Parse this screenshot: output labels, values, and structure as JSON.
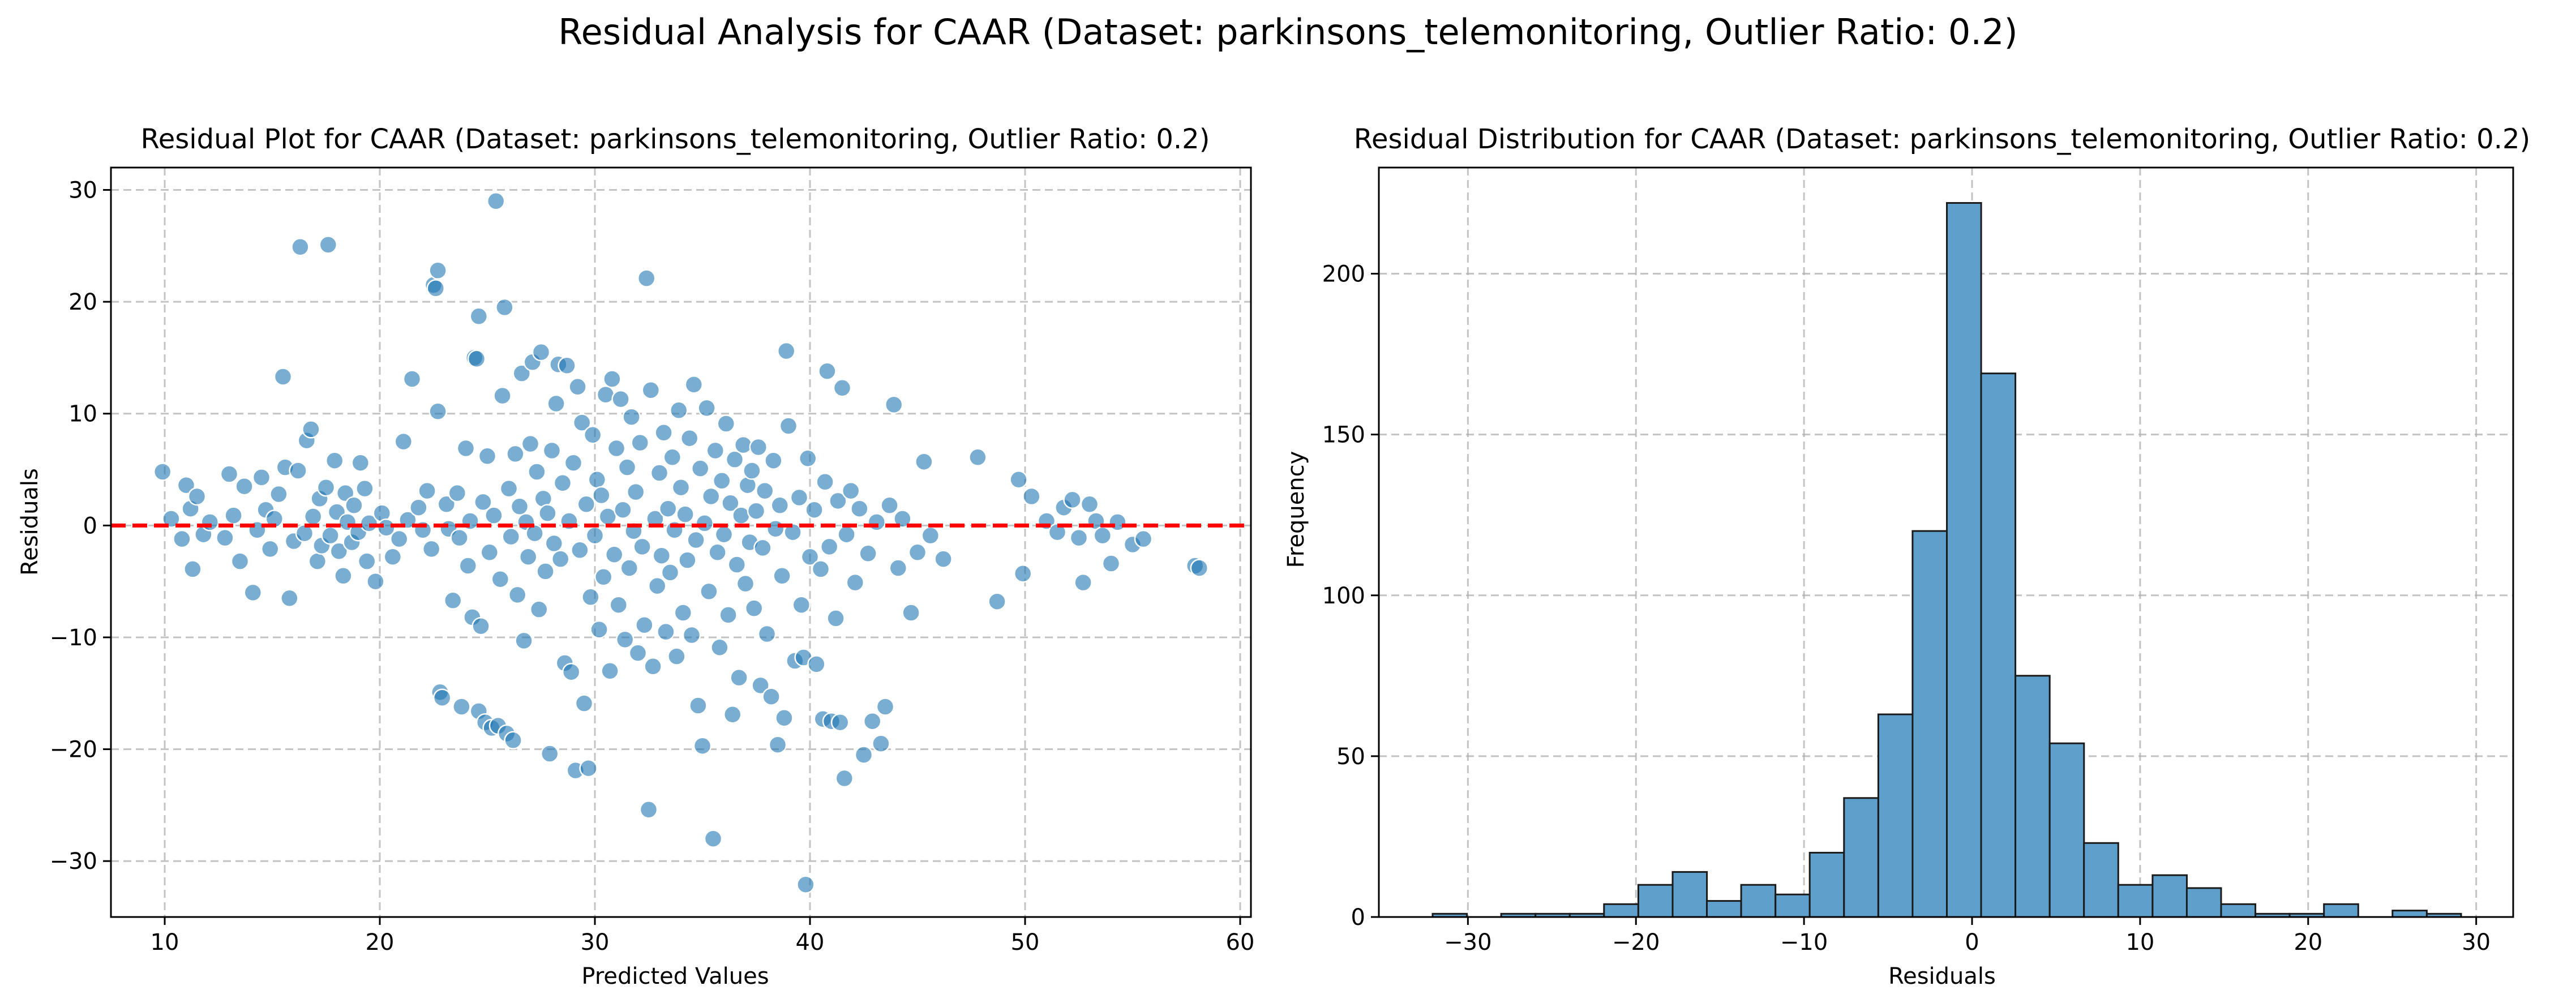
{
  "suptitle": "Residual Analysis for CAAR (Dataset: parkinsons_telemonitoring, Outlier Ratio: 0.2)",
  "colors": {
    "points": "#1f77b4",
    "zero_line": "#ff0000",
    "bars": "#5f9fcc",
    "bar_edge": "#1a1a1a"
  },
  "chart_data": [
    {
      "type": "scatter",
      "title": "Residual Plot for CAAR (Dataset: parkinsons_telemonitoring, Outlier Ratio: 0.2)",
      "xlabel": "Predicted Values",
      "ylabel": "Residuals",
      "xlim": [
        7.5,
        60.5
      ],
      "ylim": [
        -35,
        32
      ],
      "xticks": [
        10,
        20,
        30,
        40,
        50,
        60
      ],
      "yticks": [
        -30,
        -20,
        -10,
        0,
        10,
        20,
        30
      ],
      "tick_labels_x": [
        "10",
        "20",
        "30",
        "40",
        "50",
        "60"
      ],
      "tick_labels_y": [
        "−30",
        "−20",
        "−10",
        "0",
        "10",
        "20",
        "30"
      ],
      "grid": true,
      "reference_line": {
        "y": 0,
        "style": "dashed",
        "color": "red"
      },
      "points": [
        [
          9.9,
          4.8
        ],
        [
          10.3,
          0.6
        ],
        [
          10.8,
          -1.2
        ],
        [
          11.0,
          3.6
        ],
        [
          11.2,
          1.5
        ],
        [
          11.3,
          -3.9
        ],
        [
          11.5,
          2.6
        ],
        [
          11.8,
          -0.8
        ],
        [
          12.1,
          0.3
        ],
        [
          12.8,
          -1.1
        ],
        [
          13.0,
          4.6
        ],
        [
          13.2,
          0.9
        ],
        [
          13.5,
          -3.2
        ],
        [
          13.7,
          3.5
        ],
        [
          14.1,
          -6.0
        ],
        [
          14.3,
          -0.4
        ],
        [
          14.5,
          4.3
        ],
        [
          14.7,
          1.4
        ],
        [
          14.9,
          -2.1
        ],
        [
          15.1,
          0.6
        ],
        [
          15.3,
          2.8
        ],
        [
          15.5,
          13.3
        ],
        [
          15.6,
          5.2
        ],
        [
          15.8,
          -6.5
        ],
        [
          16.0,
          -1.4
        ],
        [
          16.2,
          4.9
        ],
        [
          16.3,
          24.9
        ],
        [
          16.5,
          -0.7
        ],
        [
          16.6,
          7.6
        ],
        [
          16.8,
          8.6
        ],
        [
          16.9,
          0.8
        ],
        [
          17.1,
          -3.2
        ],
        [
          17.2,
          2.4
        ],
        [
          17.3,
          -1.8
        ],
        [
          17.5,
          3.4
        ],
        [
          17.6,
          25.1
        ],
        [
          17.7,
          -0.9
        ],
        [
          17.9,
          5.8
        ],
        [
          18.0,
          1.2
        ],
        [
          18.1,
          -2.3
        ],
        [
          18.3,
          -4.5
        ],
        [
          18.4,
          2.9
        ],
        [
          18.5,
          0.3
        ],
        [
          18.7,
          -1.5
        ],
        [
          18.8,
          1.8
        ],
        [
          19.0,
          -0.6
        ],
        [
          19.1,
          5.6
        ],
        [
          19.3,
          3.3
        ],
        [
          19.4,
          -3.2
        ],
        [
          19.5,
          0.2
        ],
        [
          19.8,
          -5.0
        ],
        [
          20.1,
          1.1
        ],
        [
          20.3,
          -0.2
        ],
        [
          20.6,
          -2.8
        ],
        [
          20.9,
          -1.2
        ],
        [
          21.1,
          7.5
        ],
        [
          21.3,
          0.5
        ],
        [
          21.5,
          13.1
        ],
        [
          21.8,
          1.6
        ],
        [
          22.0,
          -0.4
        ],
        [
          22.2,
          3.1
        ],
        [
          22.4,
          -2.1
        ],
        [
          22.5,
          21.5
        ],
        [
          22.6,
          21.2
        ],
        [
          22.7,
          22.8
        ],
        [
          22.7,
          10.2
        ],
        [
          22.8,
          -14.9
        ],
        [
          22.9,
          -15.4
        ],
        [
          23.1,
          1.9
        ],
        [
          23.2,
          -0.3
        ],
        [
          23.4,
          -6.7
        ],
        [
          23.6,
          2.9
        ],
        [
          23.7,
          -1.1
        ],
        [
          23.8,
          -16.2
        ],
        [
          24.0,
          6.9
        ],
        [
          24.1,
          -3.6
        ],
        [
          24.2,
          0.4
        ],
        [
          24.3,
          -8.2
        ],
        [
          24.4,
          15.0
        ],
        [
          24.5,
          14.9
        ],
        [
          24.6,
          18.7
        ],
        [
          24.6,
          -16.6
        ],
        [
          24.7,
          -9.0
        ],
        [
          24.8,
          2.1
        ],
        [
          24.9,
          -17.6
        ],
        [
          25.0,
          6.2
        ],
        [
          25.1,
          -2.4
        ],
        [
          25.2,
          -18.1
        ],
        [
          25.3,
          0.9
        ],
        [
          25.4,
          29.0
        ],
        [
          25.5,
          -17.9
        ],
        [
          25.6,
          -4.8
        ],
        [
          25.7,
          11.6
        ],
        [
          25.8,
          19.5
        ],
        [
          25.9,
          -18.6
        ],
        [
          26.0,
          3.3
        ],
        [
          26.1,
          -1.0
        ],
        [
          26.2,
          -19.2
        ],
        [
          26.3,
          6.4
        ],
        [
          26.4,
          -6.2
        ],
        [
          26.5,
          1.7
        ],
        [
          26.6,
          13.6
        ],
        [
          26.7,
          -10.3
        ],
        [
          26.8,
          0.3
        ],
        [
          26.9,
          -2.8
        ],
        [
          27.0,
          7.3
        ],
        [
          27.1,
          14.6
        ],
        [
          27.2,
          -0.7
        ],
        [
          27.3,
          4.8
        ],
        [
          27.4,
          -7.5
        ],
        [
          27.5,
          15.5
        ],
        [
          27.6,
          2.4
        ],
        [
          27.7,
          -4.1
        ],
        [
          27.8,
          1.1
        ],
        [
          27.9,
          -20.4
        ],
        [
          28.0,
          6.7
        ],
        [
          28.1,
          -1.6
        ],
        [
          28.2,
          10.9
        ],
        [
          28.3,
          14.4
        ],
        [
          28.4,
          -3.0
        ],
        [
          28.5,
          3.8
        ],
        [
          28.6,
          -12.3
        ],
        [
          28.7,
          14.3
        ],
        [
          28.8,
          0.4
        ],
        [
          28.9,
          -13.1
        ],
        [
          29.0,
          5.6
        ],
        [
          29.1,
          -21.9
        ],
        [
          29.2,
          12.4
        ],
        [
          29.3,
          -2.2
        ],
        [
          29.4,
          9.2
        ],
        [
          29.5,
          -15.9
        ],
        [
          29.6,
          1.9
        ],
        [
          29.7,
          -21.7
        ],
        [
          29.8,
          -6.4
        ],
        [
          29.9,
          8.1
        ],
        [
          30.0,
          -0.9
        ],
        [
          30.1,
          4.1
        ],
        [
          30.2,
          -9.3
        ],
        [
          30.3,
          2.7
        ],
        [
          30.4,
          -4.6
        ],
        [
          30.5,
          11.7
        ],
        [
          30.6,
          0.8
        ],
        [
          30.7,
          -13.0
        ],
        [
          30.8,
          13.1
        ],
        [
          30.9,
          -2.6
        ],
        [
          31.0,
          6.9
        ],
        [
          31.1,
          -7.1
        ],
        [
          31.2,
          11.3
        ],
        [
          31.3,
          1.4
        ],
        [
          31.4,
          -10.2
        ],
        [
          31.5,
          5.2
        ],
        [
          31.6,
          -3.8
        ],
        [
          31.7,
          9.7
        ],
        [
          31.8,
          -0.5
        ],
        [
          31.9,
          3.0
        ],
        [
          32.0,
          -11.4
        ],
        [
          32.1,
          7.4
        ],
        [
          32.2,
          -1.9
        ],
        [
          32.3,
          -8.9
        ],
        [
          32.4,
          22.1
        ],
        [
          32.5,
          -25.4
        ],
        [
          32.6,
          12.1
        ],
        [
          32.7,
          -12.6
        ],
        [
          32.8,
          0.6
        ],
        [
          32.9,
          -5.4
        ],
        [
          33.0,
          4.7
        ],
        [
          33.1,
          -2.7
        ],
        [
          33.2,
          8.3
        ],
        [
          33.3,
          -9.5
        ],
        [
          33.4,
          1.5
        ],
        [
          33.5,
          -4.2
        ],
        [
          33.6,
          6.1
        ],
        [
          33.7,
          -0.4
        ],
        [
          33.8,
          -11.7
        ],
        [
          33.9,
          10.3
        ],
        [
          34.0,
          3.4
        ],
        [
          34.1,
          -7.8
        ],
        [
          34.2,
          1.0
        ],
        [
          34.3,
          -3.1
        ],
        [
          34.4,
          7.8
        ],
        [
          34.5,
          -9.8
        ],
        [
          34.6,
          12.6
        ],
        [
          34.7,
          -1.3
        ],
        [
          34.8,
          -16.1
        ],
        [
          34.9,
          5.1
        ],
        [
          35.0,
          -19.7
        ],
        [
          35.1,
          0.2
        ],
        [
          35.2,
          10.5
        ],
        [
          35.3,
          -5.9
        ],
        [
          35.4,
          2.6
        ],
        [
          35.5,
          -28.0
        ],
        [
          35.6,
          6.7
        ],
        [
          35.7,
          -2.4
        ],
        [
          35.8,
          -10.9
        ],
        [
          35.9,
          4.0
        ],
        [
          36.0,
          -0.8
        ],
        [
          36.1,
          9.1
        ],
        [
          36.2,
          -8.0
        ],
        [
          36.3,
          2.0
        ],
        [
          36.4,
          -16.9
        ],
        [
          36.5,
          5.9
        ],
        [
          36.6,
          -3.5
        ],
        [
          36.7,
          -13.6
        ],
        [
          36.8,
          0.9
        ],
        [
          36.9,
          7.2
        ],
        [
          37.0,
          -5.2
        ],
        [
          37.1,
          3.6
        ],
        [
          37.2,
          -1.5
        ],
        [
          37.3,
          4.9
        ],
        [
          37.4,
          -7.4
        ],
        [
          37.5,
          1.3
        ],
        [
          37.6,
          7.0
        ],
        [
          37.7,
          -14.3
        ],
        [
          37.8,
          -2.0
        ],
        [
          37.9,
          3.1
        ],
        [
          38.0,
          -9.7
        ],
        [
          38.2,
          -15.3
        ],
        [
          38.3,
          5.8
        ],
        [
          38.4,
          -0.3
        ],
        [
          38.5,
          -19.6
        ],
        [
          38.6,
          1.8
        ],
        [
          38.7,
          -4.5
        ],
        [
          38.8,
          -17.2
        ],
        [
          38.9,
          15.6
        ],
        [
          39.0,
          8.9
        ],
        [
          39.2,
          -0.6
        ],
        [
          39.3,
          -12.1
        ],
        [
          39.5,
          2.5
        ],
        [
          39.6,
          -7.1
        ],
        [
          39.7,
          -11.8
        ],
        [
          39.8,
          -32.1
        ],
        [
          39.9,
          6.0
        ],
        [
          40.0,
          -2.8
        ],
        [
          40.2,
          1.4
        ],
        [
          40.3,
          -12.4
        ],
        [
          40.5,
          -3.9
        ],
        [
          40.6,
          -17.3
        ],
        [
          40.7,
          3.9
        ],
        [
          40.8,
          13.8
        ],
        [
          40.9,
          -1.9
        ],
        [
          41.0,
          -17.5
        ],
        [
          41.2,
          -8.3
        ],
        [
          41.3,
          2.2
        ],
        [
          41.4,
          -17.6
        ],
        [
          41.5,
          12.3
        ],
        [
          41.6,
          -22.6
        ],
        [
          41.7,
          -0.8
        ],
        [
          41.9,
          3.1
        ],
        [
          42.1,
          -5.1
        ],
        [
          42.3,
          1.5
        ],
        [
          42.5,
          -20.5
        ],
        [
          42.7,
          -2.5
        ],
        [
          42.9,
          -17.5
        ],
        [
          43.1,
          0.3
        ],
        [
          43.3,
          -19.5
        ],
        [
          43.5,
          -16.2
        ],
        [
          43.7,
          1.8
        ],
        [
          43.9,
          10.8
        ],
        [
          44.1,
          -3.8
        ],
        [
          44.3,
          0.6
        ],
        [
          44.7,
          -7.8
        ],
        [
          45.0,
          -2.4
        ],
        [
          45.3,
          5.7
        ],
        [
          45.6,
          -0.9
        ],
        [
          46.2,
          -3.0
        ],
        [
          47.8,
          6.1
        ],
        [
          48.7,
          -6.8
        ],
        [
          49.7,
          4.1
        ],
        [
          49.9,
          -4.3
        ],
        [
          50.3,
          2.6
        ],
        [
          51.0,
          0.4
        ],
        [
          51.5,
          -0.6
        ],
        [
          51.8,
          1.6
        ],
        [
          52.2,
          2.3
        ],
        [
          52.5,
          -1.1
        ],
        [
          52.7,
          -5.1
        ],
        [
          53.0,
          1.9
        ],
        [
          53.3,
          0.4
        ],
        [
          53.6,
          -0.9
        ],
        [
          54.0,
          -3.4
        ],
        [
          54.3,
          0.3
        ],
        [
          55.0,
          -1.7
        ],
        [
          55.5,
          -1.2
        ],
        [
          57.9,
          -3.6
        ],
        [
          58.1,
          -3.8
        ]
      ]
    },
    {
      "type": "bar",
      "subtype": "histogram",
      "title": "Residual Distribution for CAAR (Dataset: parkinsons_telemonitoring, Outlier Ratio: 0.2)",
      "xlabel": "Residuals",
      "ylabel": "Frequency",
      "xlim": [
        -35.3,
        32.2
      ],
      "ylim": [
        0,
        233
      ],
      "xticks": [
        -30,
        -20,
        -10,
        0,
        10,
        20,
        30
      ],
      "yticks": [
        0,
        50,
        100,
        150,
        200
      ],
      "tick_labels_x": [
        "−30",
        "−20",
        "−10",
        "0",
        "10",
        "20",
        "30"
      ],
      "tick_labels_y": [
        "0",
        "50",
        "100",
        "150",
        "200"
      ],
      "grid": true,
      "bin_start": -32.1,
      "bin_width": 2.04,
      "counts": [
        1,
        0,
        1,
        1,
        1,
        4,
        10,
        14,
        5,
        10,
        7,
        20,
        37,
        63,
        120,
        222,
        169,
        75,
        54,
        23,
        10,
        13,
        9,
        4,
        1,
        1,
        4,
        0,
        2,
        1
      ]
    }
  ]
}
